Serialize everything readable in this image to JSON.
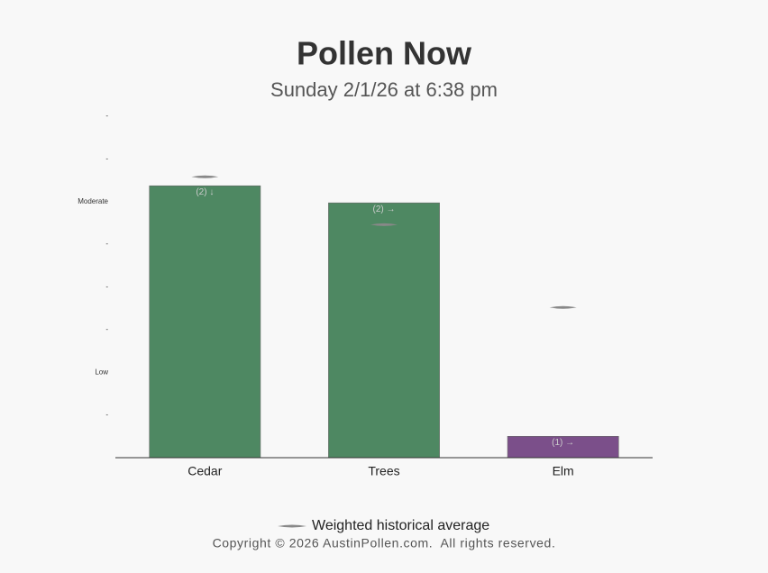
{
  "chart_data": {
    "type": "bar",
    "title": "Pollen Now",
    "subtitle": "Sunday 2/1/26 at 6:38 pm",
    "categories": [
      "Cedar",
      "Trees",
      "Elm"
    ],
    "values": [
      6.37,
      5.97,
      0.5
    ],
    "colors": [
      "#4e8862",
      "#4e8862",
      "#7b4f8a"
    ],
    "annotations": [
      "(2) ↓",
      "(2) →",
      "(1) →"
    ],
    "average": {
      "name": "Weighted historical average",
      "color": "#888888",
      "values": [
        6.58,
        5.46,
        3.52
      ]
    },
    "ylim": [
      0,
      8
    ],
    "yticks": [
      {
        "value": 1,
        "label": "-"
      },
      {
        "value": 2,
        "label": "Low"
      },
      {
        "value": 3,
        "label": "-"
      },
      {
        "value": 4,
        "label": "-"
      },
      {
        "value": 5,
        "label": "-"
      },
      {
        "value": 6,
        "label": "Moderate"
      },
      {
        "value": 7,
        "label": "-"
      },
      {
        "value": 8,
        "label": "-"
      }
    ],
    "footer": "Copyright © 2026 AustinPollen.com.  All rights reserved."
  }
}
